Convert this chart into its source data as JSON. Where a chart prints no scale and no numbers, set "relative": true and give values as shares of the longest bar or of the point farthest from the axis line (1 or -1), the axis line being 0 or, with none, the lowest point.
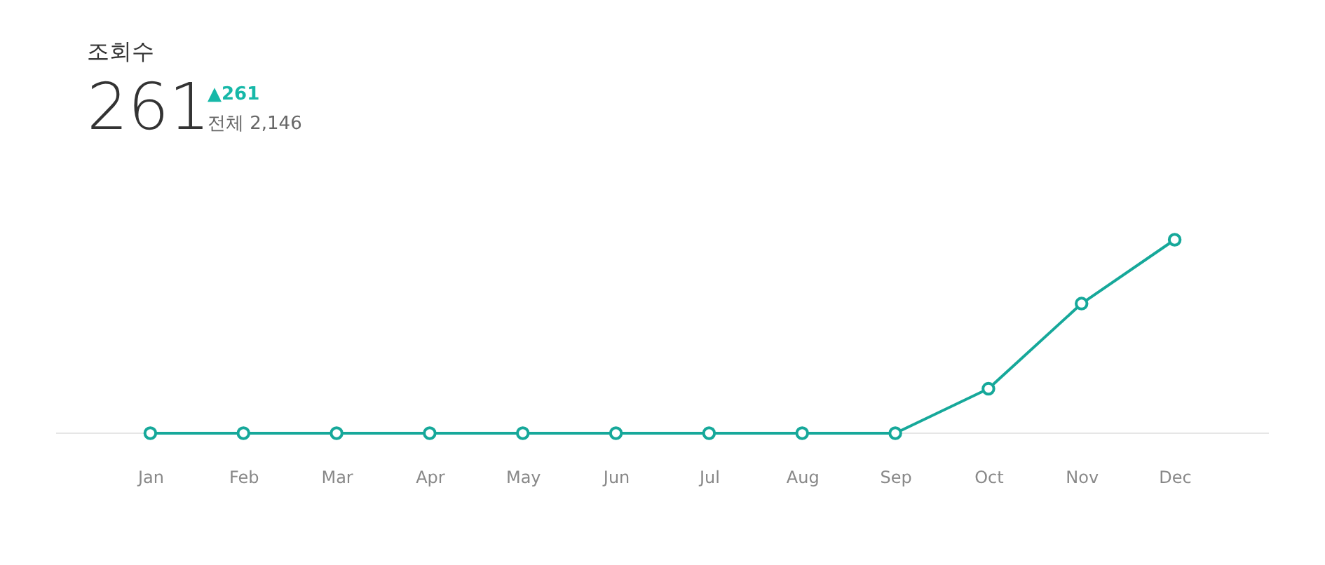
{
  "chart_data": {
    "type": "line",
    "title": "조회수",
    "relative": true,
    "categories": [
      "Jan",
      "Feb",
      "Mar",
      "Apr",
      "May",
      "Jun",
      "Jul",
      "Aug",
      "Sep",
      "Oct",
      "Nov",
      "Dec"
    ],
    "series": [
      {
        "color": "#16a89a",
        "values": [
          0,
          0,
          0,
          0,
          0,
          0,
          0,
          0,
          0,
          0.23,
          0.67,
          1
        ]
      }
    ],
    "annotations": [
      "261",
      "▲261",
      "전체 2,146"
    ],
    "marker": "circle",
    "line_style": "solid"
  }
}
